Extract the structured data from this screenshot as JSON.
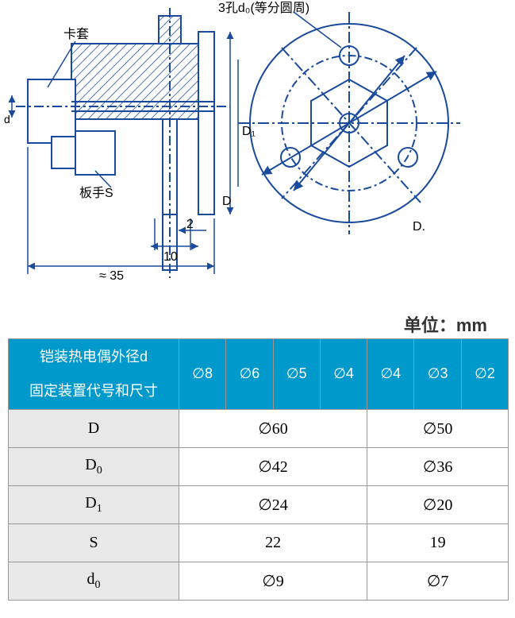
{
  "diagram": {
    "label_top": "3孔d₀(等分圆周)",
    "label_left": "卡套",
    "label_wrench": "板手S",
    "dim_D": "D",
    "dim_D1": "D₁",
    "dim_D2": "D.",
    "dim_d": "d",
    "dim_flange_offset": "2",
    "dim_flange_width": "10",
    "dim_approx_length": "≈ 35",
    "colors": {
      "stroke": "#1a4a9c",
      "hatch": "#1a4a9c",
      "text": "#000000",
      "background": "#ffffff"
    },
    "stroke_width": 2
  },
  "unit_label": "单位：mm",
  "table": {
    "header_left_line1": "铠装热电偶外径d",
    "header_left_line2": "固定装置代号和尺寸",
    "diameter_columns": [
      "∅8",
      "∅6",
      "∅5",
      "∅4",
      "∅4",
      "∅3",
      "∅2"
    ],
    "rows": [
      {
        "label": "D",
        "sub": "",
        "value_left": "∅60",
        "value_right": "∅50"
      },
      {
        "label": "D",
        "sub": "0",
        "value_left": "∅42",
        "value_right": "∅36"
      },
      {
        "label": "D",
        "sub": "1",
        "value_left": "∅24",
        "value_right": "∅20"
      },
      {
        "label": "S",
        "sub": "",
        "value_left": "22",
        "value_right": "19"
      },
      {
        "label": "d",
        "sub": "0",
        "value_left": "∅9",
        "value_right": "∅7"
      }
    ],
    "col_widths": {
      "label_col": 215,
      "dia_col": 59.3
    },
    "colors": {
      "header_bg": "#0099cc",
      "header_text": "#ffffff",
      "label_bg": "#e8e8e8",
      "value_bg": "#ffffff",
      "border": "#999999",
      "text": "#333333"
    }
  }
}
